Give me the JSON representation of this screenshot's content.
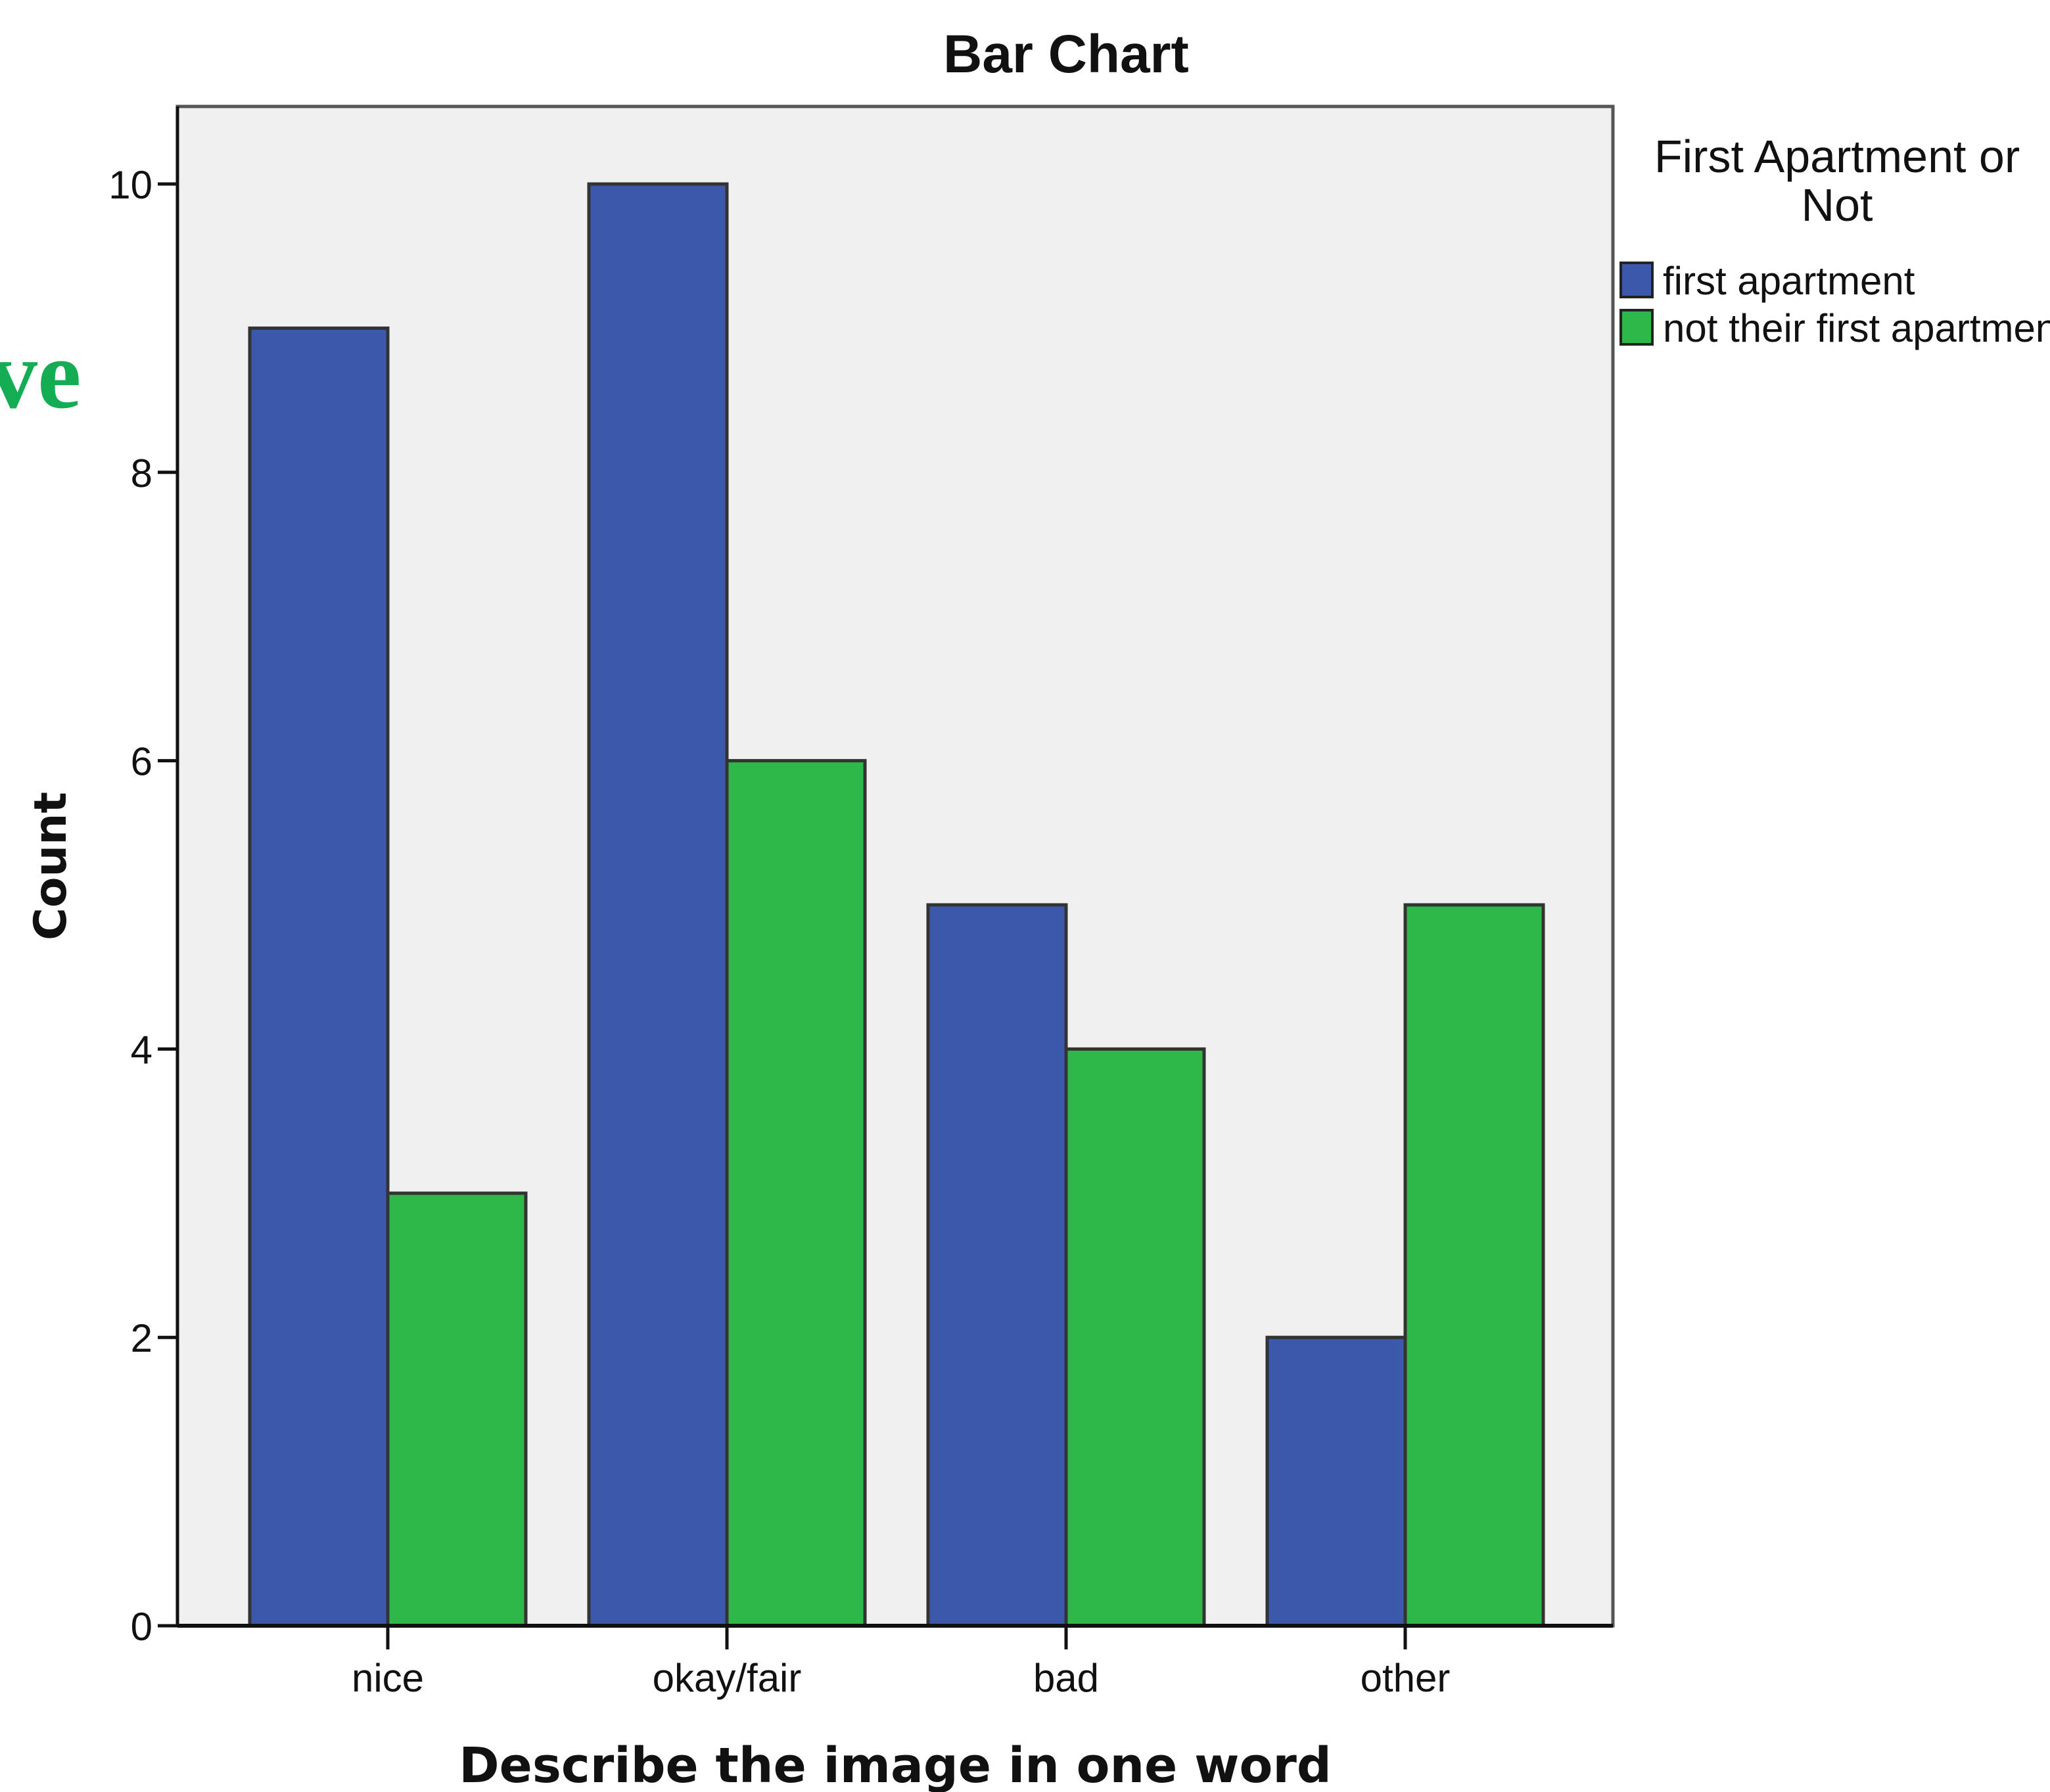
{
  "fragment_text": "ve",
  "colors": {
    "first_apartment": "#3c58ab",
    "not_first_apartment": "#2fb84a",
    "plot_background": "#f0f0f0",
    "fragment": "#14ad54"
  },
  "chart_data": {
    "type": "bar",
    "title": "Bar Chart",
    "xlabel": "Describe the image in one word",
    "ylabel": "Count",
    "categories": [
      "nice",
      "okay/fair",
      "bad",
      "other"
    ],
    "ylim": [
      0,
      10
    ],
    "yticks": [
      "0",
      "2",
      "4",
      "6",
      "8",
      "10"
    ],
    "grid": false,
    "legend": {
      "title": [
        "First Apartment or",
        "Not"
      ],
      "placement": "right"
    },
    "series": [
      {
        "name": "first apartment",
        "values": [
          9,
          10,
          5,
          2
        ]
      },
      {
        "name": "not their first apartment",
        "values": [
          3,
          6,
          4,
          5
        ]
      }
    ]
  }
}
